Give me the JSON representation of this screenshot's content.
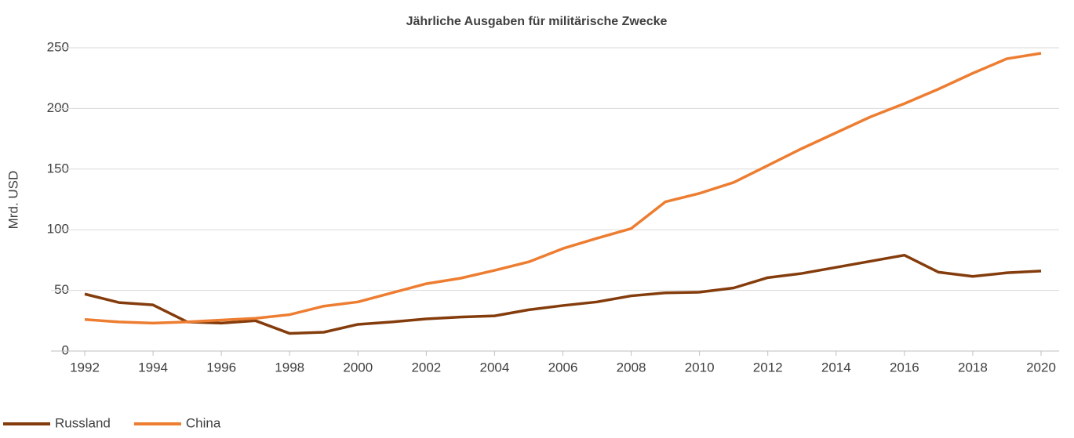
{
  "chart_data": {
    "type": "line",
    "title": "Jährliche Ausgaben für militärische Zwecke",
    "y_label": "Mrd. USD",
    "x": [
      1992,
      1993,
      1994,
      1995,
      1996,
      1997,
      1998,
      1999,
      2000,
      2001,
      2002,
      2003,
      2004,
      2005,
      2006,
      2007,
      2008,
      2009,
      2010,
      2011,
      2012,
      2013,
      2014,
      2015,
      2016,
      2017,
      2018,
      2019,
      2020
    ],
    "series": [
      {
        "name": "Russland",
        "color": "#843c0c",
        "values": [
          47,
          40,
          38,
          24,
          23,
          25,
          14.5,
          15.5,
          22,
          24,
          26.5,
          28,
          29,
          34,
          37.5,
          40.5,
          45.5,
          48,
          48.5,
          52,
          60.5,
          64,
          69,
          74,
          79,
          65,
          61.5,
          64.5,
          66
        ]
      },
      {
        "name": "China",
        "color": "#ed7d31",
        "values": [
          26,
          24,
          23,
          24,
          25.5,
          27,
          30,
          37,
          40.5,
          48,
          55.5,
          60,
          66.5,
          73.5,
          84.5,
          93,
          101,
          123,
          130,
          139,
          153,
          167,
          180,
          193,
          204,
          216,
          229,
          241,
          245.5
        ]
      }
    ],
    "xlim": [
      1992,
      2020
    ],
    "xticks": [
      1992,
      1994,
      1996,
      1998,
      2000,
      2002,
      2004,
      2006,
      2008,
      2010,
      2012,
      2014,
      2016,
      2018,
      2020
    ],
    "ylim": [
      0,
      250
    ],
    "yticks": [
      0,
      50,
      100,
      150,
      200,
      250
    ],
    "grid": true,
    "legend": "bottom-left"
  }
}
